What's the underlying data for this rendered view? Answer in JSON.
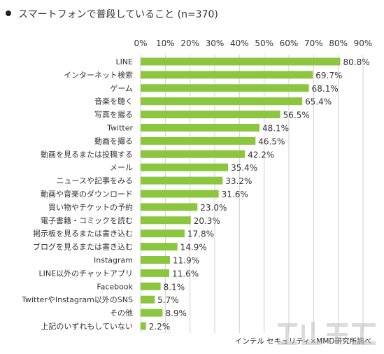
{
  "title": "スマートフォンで普段していること (n=370)",
  "source": "インテル セキュリティ×MMD研究所調べ",
  "colors": {
    "bar": "#8cc63f",
    "grid": "#d0d0d0",
    "text": "#333333"
  },
  "chart_data": {
    "type": "bar",
    "orientation": "horizontal",
    "title": "スマートフォンで普段していること (n=370)",
    "xlim": [
      0,
      90
    ],
    "ticks": [
      0,
      10,
      20,
      30,
      40,
      50,
      60,
      70,
      80,
      90
    ],
    "tick_labels": [
      "0%",
      "10%",
      "20%",
      "30%",
      "40%",
      "50%",
      "60%",
      "70%",
      "80%",
      "90%"
    ],
    "grid": true,
    "categories": [
      "LINE",
      "インターネット検索",
      "ゲーム",
      "音楽を聴く",
      "写真を撮る",
      "Twitter",
      "動画を撮る",
      "動画を見るまたは投稿する",
      "メール",
      "ニュースや記事をみる",
      "動画や音楽のダウンロード",
      "買い物やチケットの予約",
      "電子書籍・コミックを読む",
      "掲示板を見るまたは書き込む",
      "ブログを見るまたは書き込む",
      "Instagram",
      "LINE以外のチャットアプリ",
      "Facebook",
      "TwitterやInstagram以外のSNS",
      "その他",
      "上記のいずれもしていない"
    ],
    "values": [
      80.8,
      69.7,
      68.1,
      65.4,
      56.5,
      48.1,
      46.5,
      42.2,
      35.4,
      33.2,
      31.6,
      23.0,
      20.3,
      17.8,
      14.9,
      11.9,
      11.6,
      8.1,
      5.7,
      8.9,
      2.2
    ],
    "value_labels": [
      "80.8%",
      "69.7%",
      "68.1%",
      "65.4%",
      "56.5%",
      "48.1%",
      "46.5%",
      "42.2%",
      "35.4%",
      "33.2%",
      "31.6%",
      "23.0%",
      "20.3%",
      "17.8%",
      "14.9%",
      "11.9%",
      "11.6%",
      "8.1%",
      "5.7%",
      "8.9%",
      "2.2%"
    ]
  }
}
